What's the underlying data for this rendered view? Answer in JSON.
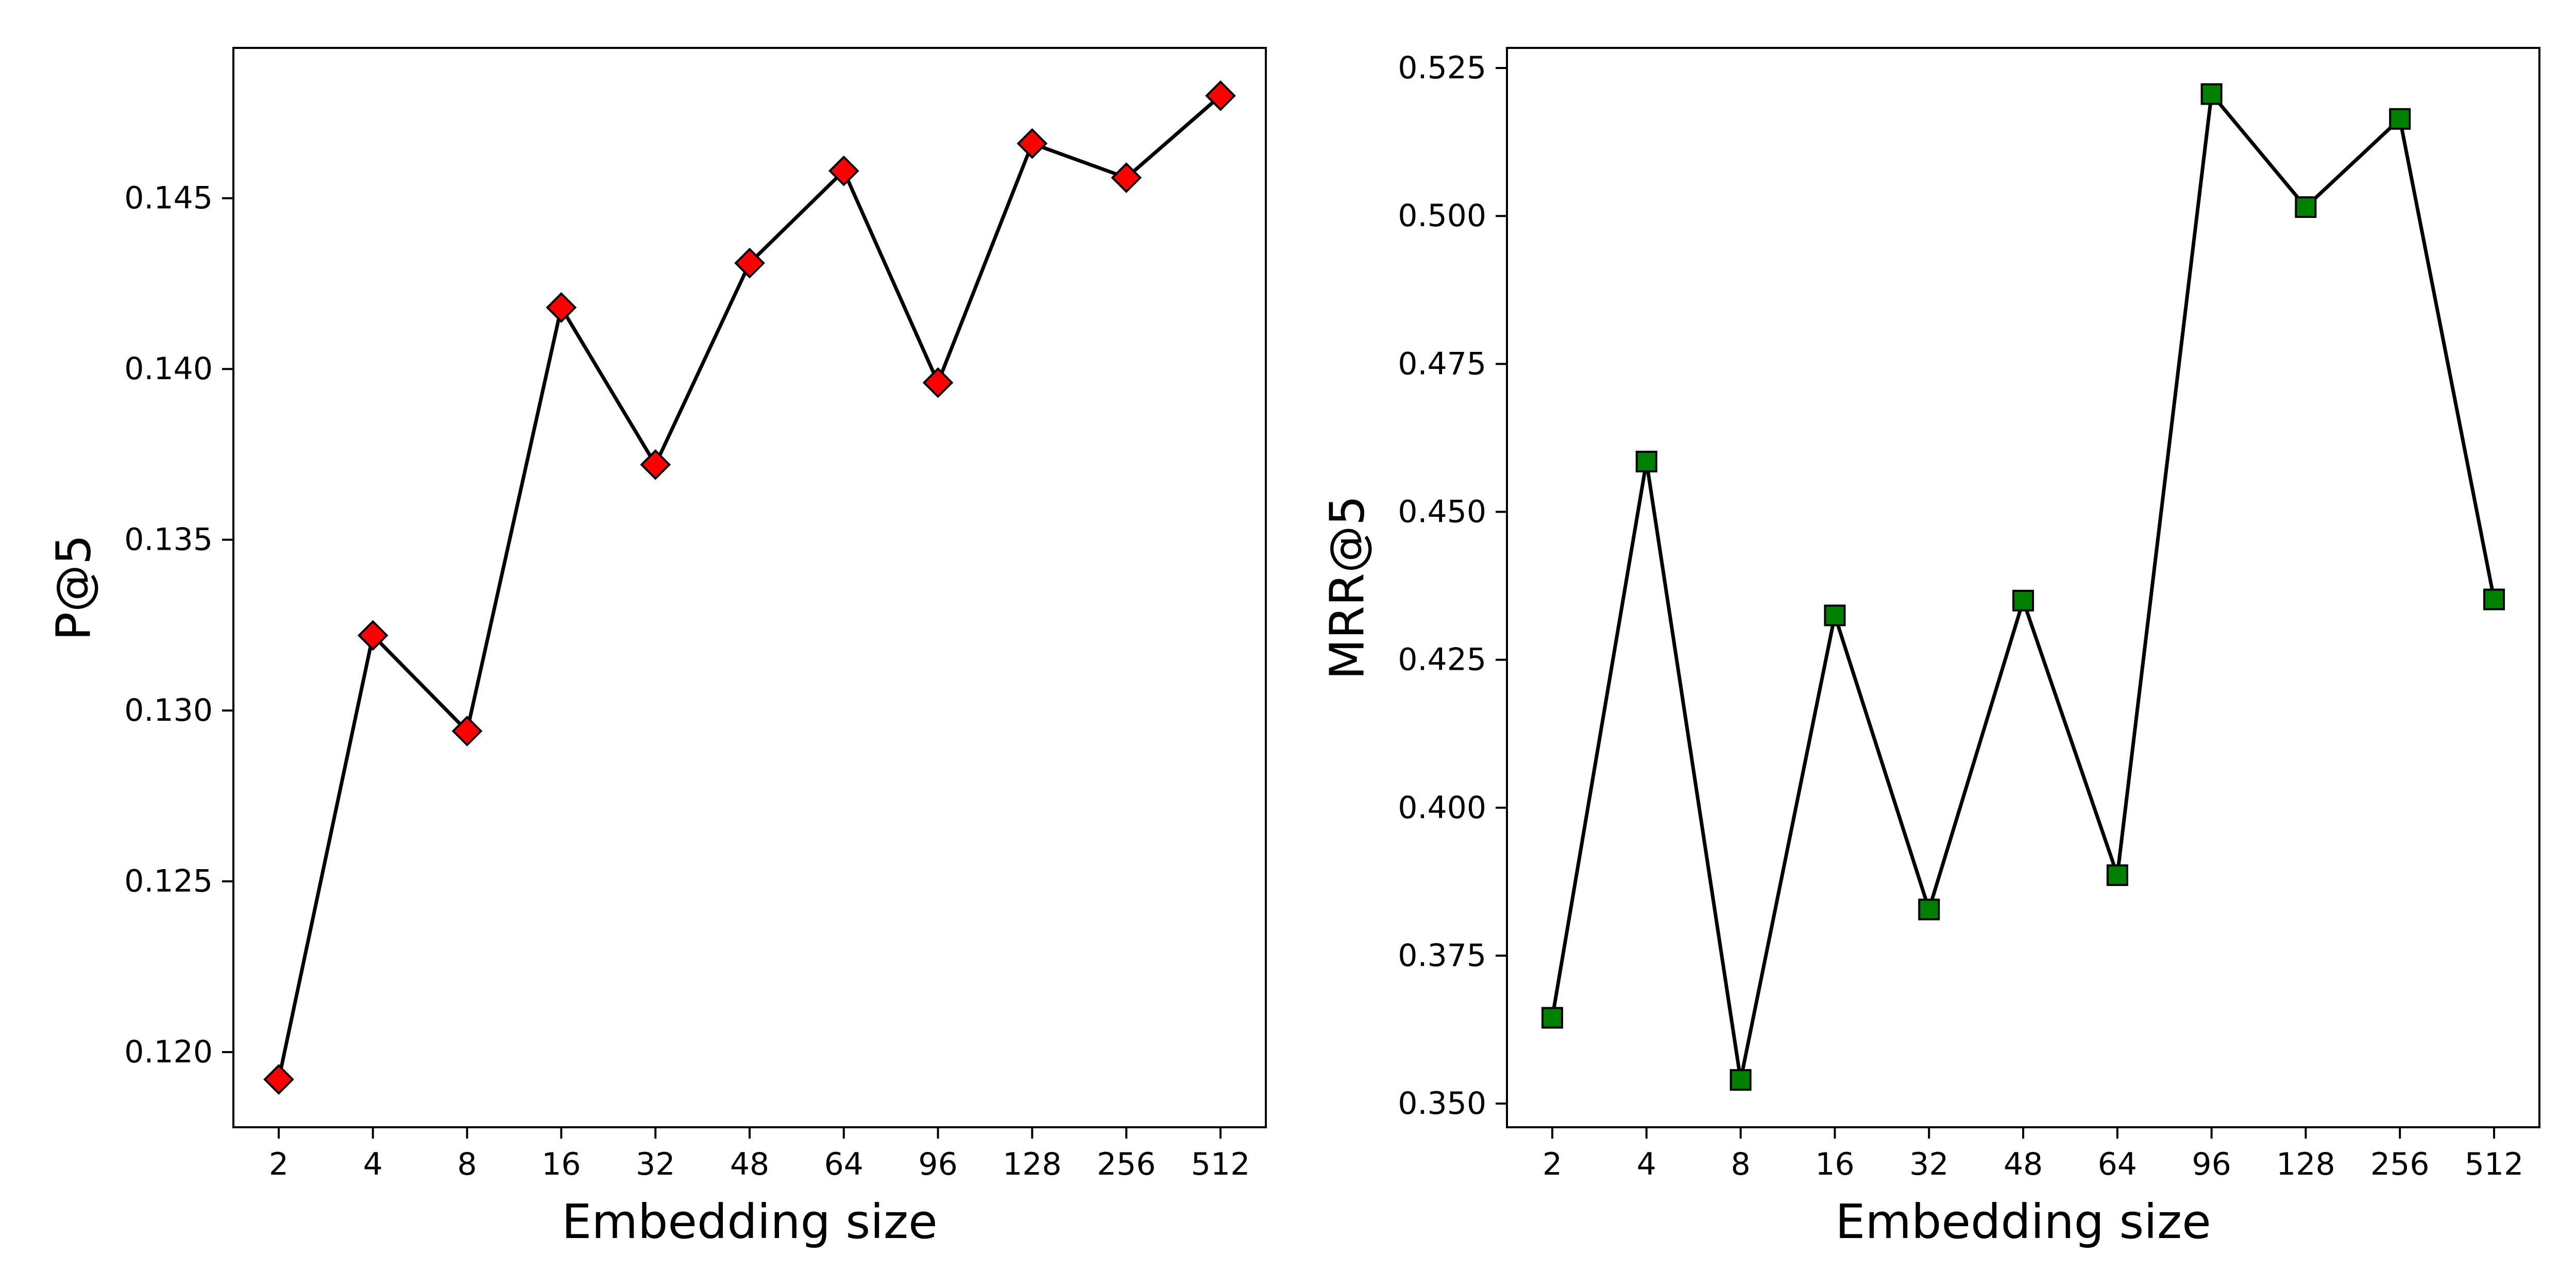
{
  "chart_data": [
    {
      "type": "line",
      "categories": [
        "2",
        "4",
        "8",
        "16",
        "32",
        "48",
        "64",
        "96",
        "128",
        "256",
        "512"
      ],
      "series": [
        {
          "values": [
            0.1192,
            0.1322,
            0.1294,
            0.1418,
            0.1372,
            0.1431,
            0.1458,
            0.1396,
            0.1466,
            0.1456,
            0.148
          ],
          "line_color": "#000000",
          "marker": "diamond",
          "marker_color": "#ff0000"
        }
      ],
      "xlabel": "Embedding size",
      "ylabel": "P@5",
      "ylim": [
        0.1178,
        0.1494
      ],
      "yticks": [
        0.12,
        0.125,
        0.13,
        0.135,
        0.14,
        0.145
      ],
      "ytick_labels": [
        "0.120",
        "0.125",
        "0.130",
        "0.135",
        "0.140",
        "0.145"
      ],
      "grid": false
    },
    {
      "type": "line",
      "categories": [
        "2",
        "4",
        "8",
        "16",
        "32",
        "48",
        "64",
        "96",
        "128",
        "256",
        "512"
      ],
      "series": [
        {
          "values": [
            0.3645,
            0.4585,
            0.354,
            0.4325,
            0.3828,
            0.435,
            0.3886,
            0.5206,
            0.5015,
            0.5164,
            0.4352
          ],
          "line_color": "#000000",
          "marker": "square",
          "marker_color": "#008000"
        }
      ],
      "xlabel": "Embedding size",
      "ylabel": "MRR@5",
      "ylim": [
        0.346,
        0.5284
      ],
      "yticks": [
        0.35,
        0.375,
        0.4,
        0.425,
        0.45,
        0.475,
        0.5,
        0.525
      ],
      "ytick_labels": [
        "0.350",
        "0.375",
        "0.400",
        "0.425",
        "0.450",
        "0.475",
        "0.500",
        "0.525"
      ],
      "grid": false
    }
  ]
}
